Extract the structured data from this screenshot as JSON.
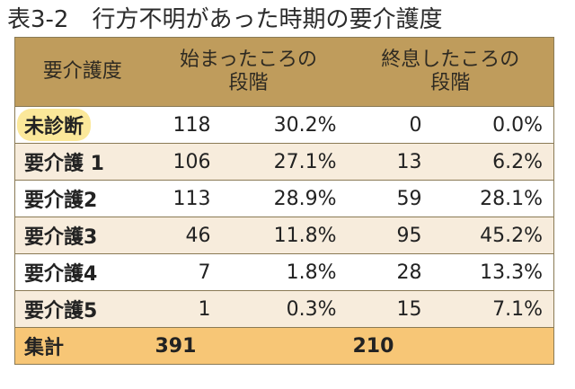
{
  "title": "表3-2　行方不明があった時期の要介護度",
  "headers": {
    "category": "要介護度",
    "start_line1": "始まったころの",
    "start_line2": "段階",
    "end_line1": "終息したころの",
    "end_line2": "段階"
  },
  "rows": [
    {
      "label": "未診断",
      "start_n": "118",
      "start_pct": "30.2%",
      "end_n": "0",
      "end_pct": "0.0%",
      "highlight": true
    },
    {
      "label": "要介護 1",
      "start_n": "106",
      "start_pct": "27.1%",
      "end_n": "13",
      "end_pct": "6.2%"
    },
    {
      "label": "要介護2",
      "start_n": "113",
      "start_pct": "28.9%",
      "end_n": "59",
      "end_pct": "28.1%"
    },
    {
      "label": "要介護3",
      "start_n": "46",
      "start_pct": "11.8%",
      "end_n": "95",
      "end_pct": "45.2%"
    },
    {
      "label": "要介護4",
      "start_n": "7",
      "start_pct": "1.8%",
      "end_n": "28",
      "end_pct": "13.3%"
    },
    {
      "label": "要介護5",
      "start_n": "1",
      "start_pct": "0.3%",
      "end_n": "15",
      "end_pct": "7.1%"
    }
  ],
  "total": {
    "label": "集計",
    "start_n": "391",
    "end_n": "210"
  },
  "colors": {
    "header": "#bf9c5c",
    "total": "#f7c676",
    "stripe": "#f7ecdc",
    "highlight": "#fbe89a"
  }
}
